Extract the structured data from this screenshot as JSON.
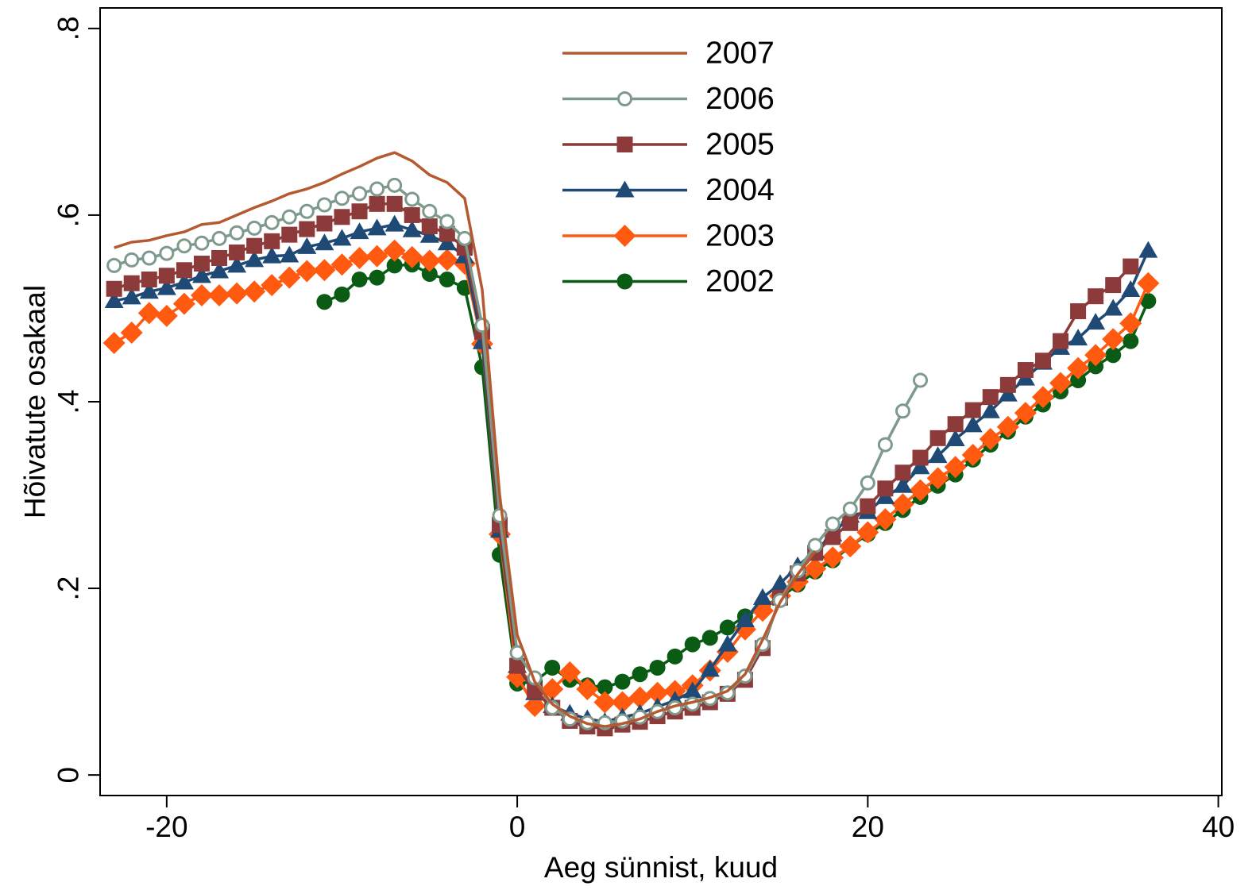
{
  "chart_data": {
    "type": "line",
    "xlabel": "Aeg sünnist, kuud",
    "ylabel": "Hõivatute osakaal",
    "xlim": [
      -23.8,
      40.2
    ],
    "ylim": [
      -0.022,
      0.822
    ],
    "x_ticks": [
      -20,
      0,
      20,
      40
    ],
    "x_tick_labels": [
      "-20",
      "0",
      "20",
      "40"
    ],
    "y_ticks": [
      0,
      0.2,
      0.4,
      0.6,
      0.8
    ],
    "y_tick_labels": [
      "0",
      ".2",
      ".4",
      ".6",
      ".8"
    ],
    "grid": false,
    "legend": {
      "position": "top-center"
    },
    "series": [
      {
        "name": "2007",
        "color": "#b55a30",
        "marker": "none",
        "points": [
          [
            -23,
            0.565
          ],
          [
            -22,
            0.571
          ],
          [
            -21,
            0.573
          ],
          [
            -20,
            0.578
          ],
          [
            -19,
            0.582
          ],
          [
            -18,
            0.59
          ],
          [
            -17,
            0.592
          ],
          [
            -16,
            0.6
          ],
          [
            -15,
            0.608
          ],
          [
            -14,
            0.615
          ],
          [
            -13,
            0.623
          ],
          [
            -12,
            0.628
          ],
          [
            -11,
            0.635
          ],
          [
            -10,
            0.644
          ],
          [
            -9,
            0.652
          ],
          [
            -8,
            0.661
          ],
          [
            -7,
            0.667
          ],
          [
            -6,
            0.658
          ],
          [
            -5,
            0.643
          ],
          [
            -4,
            0.635
          ],
          [
            -3,
            0.618
          ],
          [
            -2,
            0.52
          ],
          [
            -1,
            0.3
          ],
          [
            0,
            0.15
          ],
          [
            1,
            0.1
          ],
          [
            2,
            0.076
          ],
          [
            3,
            0.063
          ],
          [
            4,
            0.055
          ],
          [
            5,
            0.052
          ],
          [
            6,
            0.055
          ],
          [
            7,
            0.06
          ],
          [
            8,
            0.068
          ],
          [
            9,
            0.074
          ],
          [
            10,
            0.078
          ],
          [
            11,
            0.083
          ],
          [
            12,
            0.09
          ],
          [
            13,
            0.108
          ],
          [
            14,
            0.145
          ],
          [
            15,
            0.185
          ],
          [
            16,
            0.215
          ],
          [
            17,
            0.24
          ]
        ]
      },
      {
        "name": "2006",
        "color": "#7e9a8c",
        "marker": "hollow-circle",
        "points": [
          [
            -23,
            0.546
          ],
          [
            -22,
            0.552
          ],
          [
            -21,
            0.554
          ],
          [
            -20,
            0.559
          ],
          [
            -19,
            0.567
          ],
          [
            -18,
            0.57
          ],
          [
            -17,
            0.575
          ],
          [
            -16,
            0.581
          ],
          [
            -15,
            0.586
          ],
          [
            -14,
            0.592
          ],
          [
            -13,
            0.598
          ],
          [
            -12,
            0.604
          ],
          [
            -11,
            0.611
          ],
          [
            -10,
            0.618
          ],
          [
            -9,
            0.623
          ],
          [
            -8,
            0.628
          ],
          [
            -7,
            0.632
          ],
          [
            -6,
            0.617
          ],
          [
            -5,
            0.604
          ],
          [
            -4,
            0.593
          ],
          [
            -3,
            0.575
          ],
          [
            -2,
            0.482
          ],
          [
            -1,
            0.278
          ],
          [
            0,
            0.131
          ],
          [
            1,
            0.104
          ],
          [
            2,
            0.072
          ],
          [
            3,
            0.06
          ],
          [
            4,
            0.056
          ],
          [
            5,
            0.056
          ],
          [
            6,
            0.058
          ],
          [
            7,
            0.062
          ],
          [
            8,
            0.068
          ],
          [
            9,
            0.072
          ],
          [
            10,
            0.076
          ],
          [
            11,
            0.082
          ],
          [
            12,
            0.088
          ],
          [
            13,
            0.106
          ],
          [
            14,
            0.14
          ],
          [
            15,
            0.187
          ],
          [
            16,
            0.219
          ],
          [
            17,
            0.246
          ],
          [
            18,
            0.269
          ],
          [
            19,
            0.285
          ],
          [
            20,
            0.313
          ],
          [
            21,
            0.354
          ],
          [
            22,
            0.39
          ],
          [
            23,
            0.423
          ]
        ]
      },
      {
        "name": "2005",
        "color": "#8c3a3a",
        "marker": "square",
        "points": [
          [
            -23,
            0.521
          ],
          [
            -22,
            0.527
          ],
          [
            -21,
            0.531
          ],
          [
            -20,
            0.535
          ],
          [
            -19,
            0.541
          ],
          [
            -18,
            0.548
          ],
          [
            -17,
            0.554
          ],
          [
            -16,
            0.56
          ],
          [
            -15,
            0.567
          ],
          [
            -14,
            0.572
          ],
          [
            -13,
            0.579
          ],
          [
            -12,
            0.585
          ],
          [
            -11,
            0.591
          ],
          [
            -10,
            0.598
          ],
          [
            -9,
            0.604
          ],
          [
            -8,
            0.612
          ],
          [
            -7,
            0.612
          ],
          [
            -6,
            0.6
          ],
          [
            -5,
            0.588
          ],
          [
            -4,
            0.58
          ],
          [
            -3,
            0.565
          ],
          [
            -2,
            0.475
          ],
          [
            -1,
            0.268
          ],
          [
            0,
            0.117
          ],
          [
            1,
            0.09
          ],
          [
            2,
            0.072
          ],
          [
            3,
            0.058
          ],
          [
            4,
            0.052
          ],
          [
            5,
            0.05
          ],
          [
            6,
            0.054
          ],
          [
            7,
            0.057
          ],
          [
            8,
            0.063
          ],
          [
            9,
            0.068
          ],
          [
            10,
            0.072
          ],
          [
            11,
            0.078
          ],
          [
            12,
            0.087
          ],
          [
            13,
            0.102
          ],
          [
            14,
            0.136
          ],
          [
            15,
            0.19
          ],
          [
            16,
            0.216
          ],
          [
            17,
            0.238
          ],
          [
            18,
            0.255
          ],
          [
            19,
            0.27
          ],
          [
            20,
            0.288
          ],
          [
            21,
            0.307
          ],
          [
            22,
            0.324
          ],
          [
            23,
            0.34
          ],
          [
            24,
            0.361
          ],
          [
            25,
            0.376
          ],
          [
            26,
            0.391
          ],
          [
            27,
            0.405
          ],
          [
            28,
            0.418
          ],
          [
            29,
            0.434
          ],
          [
            30,
            0.444
          ],
          [
            31,
            0.465
          ],
          [
            32,
            0.497
          ],
          [
            33,
            0.513
          ],
          [
            34,
            0.525
          ],
          [
            35,
            0.545
          ]
        ]
      },
      {
        "name": "2004",
        "color": "#1e4a75",
        "marker": "triangle",
        "points": [
          [
            -23,
            0.508
          ],
          [
            -22,
            0.512
          ],
          [
            -21,
            0.518
          ],
          [
            -20,
            0.522
          ],
          [
            -19,
            0.528
          ],
          [
            -18,
            0.535
          ],
          [
            -17,
            0.54
          ],
          [
            -16,
            0.546
          ],
          [
            -15,
            0.552
          ],
          [
            -14,
            0.556
          ],
          [
            -13,
            0.557
          ],
          [
            -12,
            0.566
          ],
          [
            -11,
            0.57
          ],
          [
            -10,
            0.575
          ],
          [
            -9,
            0.582
          ],
          [
            -8,
            0.586
          ],
          [
            -7,
            0.59
          ],
          [
            -6,
            0.584
          ],
          [
            -5,
            0.578
          ],
          [
            -4,
            0.57
          ],
          [
            -3,
            0.556
          ],
          [
            -2,
            0.464
          ],
          [
            -1,
            0.262
          ],
          [
            0,
            0.117
          ],
          [
            1,
            0.088
          ],
          [
            2,
            0.074
          ],
          [
            3,
            0.066
          ],
          [
            4,
            0.06
          ],
          [
            5,
            0.057
          ],
          [
            6,
            0.062
          ],
          [
            7,
            0.066
          ],
          [
            8,
            0.073
          ],
          [
            9,
            0.08
          ],
          [
            10,
            0.09
          ],
          [
            11,
            0.113
          ],
          [
            12,
            0.14
          ],
          [
            13,
            0.166
          ],
          [
            14,
            0.19
          ],
          [
            15,
            0.205
          ],
          [
            16,
            0.224
          ],
          [
            17,
            0.24
          ],
          [
            18,
            0.258
          ],
          [
            19,
            0.278
          ],
          [
            20,
            0.282
          ],
          [
            21,
            0.298
          ],
          [
            22,
            0.31
          ],
          [
            23,
            0.33
          ],
          [
            24,
            0.342
          ],
          [
            25,
            0.36
          ],
          [
            26,
            0.375
          ],
          [
            27,
            0.39
          ],
          [
            28,
            0.408
          ],
          [
            29,
            0.425
          ],
          [
            30,
            0.442
          ],
          [
            31,
            0.458
          ],
          [
            32,
            0.468
          ],
          [
            33,
            0.485
          ],
          [
            34,
            0.5
          ],
          [
            35,
            0.52
          ],
          [
            36,
            0.562
          ]
        ]
      },
      {
        "name": "2003",
        "color": "#ff5a10",
        "marker": "diamond",
        "points": [
          [
            -23,
            0.463
          ],
          [
            -22,
            0.474
          ],
          [
            -21,
            0.495
          ],
          [
            -20,
            0.492
          ],
          [
            -19,
            0.505
          ],
          [
            -18,
            0.514
          ],
          [
            -17,
            0.514
          ],
          [
            -16,
            0.516
          ],
          [
            -15,
            0.518
          ],
          [
            -14,
            0.525
          ],
          [
            -13,
            0.533
          ],
          [
            -12,
            0.54
          ],
          [
            -11,
            0.541
          ],
          [
            -10,
            0.547
          ],
          [
            -9,
            0.554
          ],
          [
            -8,
            0.556
          ],
          [
            -7,
            0.562
          ],
          [
            -6,
            0.555
          ],
          [
            -5,
            0.551
          ],
          [
            -4,
            0.552
          ],
          [
            -3,
            0.548
          ],
          [
            -2,
            0.462
          ],
          [
            -1,
            0.258
          ],
          [
            0,
            0.105
          ],
          [
            1,
            0.074
          ],
          [
            2,
            0.092
          ],
          [
            3,
            0.11
          ],
          [
            4,
            0.092
          ],
          [
            5,
            0.078
          ],
          [
            6,
            0.078
          ],
          [
            7,
            0.083
          ],
          [
            8,
            0.088
          ],
          [
            9,
            0.09
          ],
          [
            10,
            0.096
          ],
          [
            11,
            0.112
          ],
          [
            12,
            0.132
          ],
          [
            13,
            0.156
          ],
          [
            14,
            0.176
          ],
          [
            15,
            0.192
          ],
          [
            16,
            0.207
          ],
          [
            17,
            0.221
          ],
          [
            18,
            0.233
          ],
          [
            19,
            0.245
          ],
          [
            20,
            0.26
          ],
          [
            21,
            0.274
          ],
          [
            22,
            0.29
          ],
          [
            23,
            0.305
          ],
          [
            24,
            0.318
          ],
          [
            25,
            0.33
          ],
          [
            26,
            0.343
          ],
          [
            27,
            0.36
          ],
          [
            28,
            0.373
          ],
          [
            29,
            0.388
          ],
          [
            30,
            0.405
          ],
          [
            31,
            0.42
          ],
          [
            32,
            0.436
          ],
          [
            33,
            0.45
          ],
          [
            34,
            0.467
          ],
          [
            35,
            0.484
          ],
          [
            36,
            0.527
          ]
        ]
      },
      {
        "name": "2002",
        "color": "#0a5c14",
        "marker": "circle",
        "points": [
          [
            -11,
            0.507
          ],
          [
            -10,
            0.515
          ],
          [
            -9,
            0.531
          ],
          [
            -8,
            0.533
          ],
          [
            -7,
            0.546
          ],
          [
            -6,
            0.547
          ],
          [
            -5,
            0.537
          ],
          [
            -4,
            0.531
          ],
          [
            -3,
            0.522
          ],
          [
            -2,
            0.437
          ],
          [
            -1,
            0.236
          ],
          [
            0,
            0.098
          ],
          [
            1,
            0.1
          ],
          [
            2,
            0.115
          ],
          [
            3,
            0.102
          ],
          [
            4,
            0.096
          ],
          [
            5,
            0.094
          ],
          [
            6,
            0.1
          ],
          [
            7,
            0.108
          ],
          [
            8,
            0.115
          ],
          [
            9,
            0.127
          ],
          [
            10,
            0.14
          ],
          [
            11,
            0.147
          ],
          [
            12,
            0.158
          ],
          [
            13,
            0.17
          ],
          [
            14,
            0.18
          ],
          [
            15,
            0.19
          ],
          [
            16,
            0.204
          ],
          [
            17,
            0.218
          ],
          [
            18,
            0.23
          ],
          [
            19,
            0.245
          ],
          [
            20,
            0.258
          ],
          [
            21,
            0.27
          ],
          [
            22,
            0.284
          ],
          [
            23,
            0.298
          ],
          [
            24,
            0.31
          ],
          [
            25,
            0.322
          ],
          [
            26,
            0.338
          ],
          [
            27,
            0.354
          ],
          [
            28,
            0.368
          ],
          [
            29,
            0.384
          ],
          [
            30,
            0.397
          ],
          [
            31,
            0.411
          ],
          [
            32,
            0.423
          ],
          [
            33,
            0.438
          ],
          [
            34,
            0.45
          ],
          [
            35,
            0.465
          ],
          [
            36,
            0.508
          ]
        ]
      }
    ]
  }
}
